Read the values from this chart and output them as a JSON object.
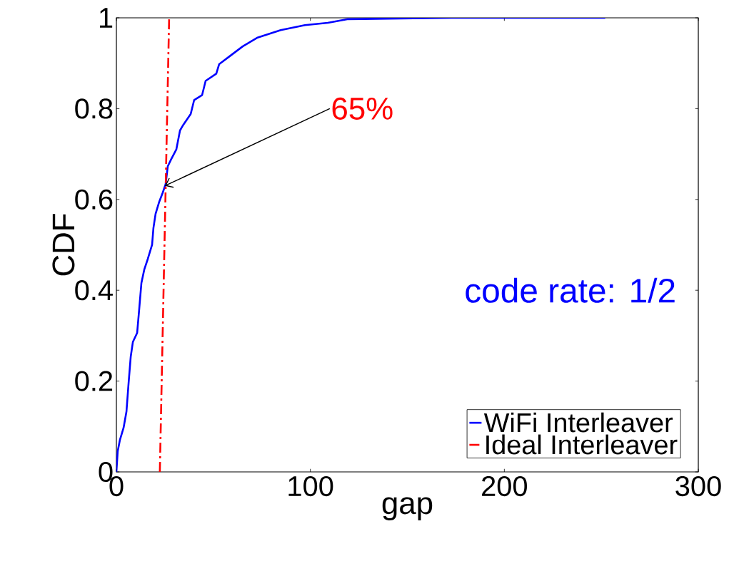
{
  "chart_data": {
    "type": "line",
    "xlabel": "gap",
    "ylabel": "CDF",
    "xlim": [
      0,
      300
    ],
    "ylim": [
      0,
      1
    ],
    "xticks": [
      0,
      100,
      200,
      300
    ],
    "yticks": [
      0,
      0.2,
      0.4,
      0.6,
      0.8,
      1
    ],
    "grid": false,
    "legend": "bottom right",
    "annotations": [
      {
        "text": "65%",
        "x": 25,
        "y": 0.63
      },
      "code rate: 1/2"
    ],
    "series": [
      {
        "name": "WiFi Interleaver",
        "color": "#0000ff",
        "line_style": "solid",
        "x": [
          0,
          0.7,
          1.8,
          3.7,
          5.2,
          6.3,
          7.4,
          8.5,
          10.7,
          11.8,
          12.9,
          14.4,
          16.2,
          18.4,
          19.1,
          20.2,
          22.1,
          23.9,
          25.4,
          26.5,
          28.3,
          30.9,
          32.8,
          34.6,
          38.3,
          40.1,
          44.2,
          46,
          51.5,
          53,
          58.9,
          65.1,
          72.5,
          84.7,
          97.2,
          109,
          119,
          173,
          252
        ],
        "values": [
          0,
          0.046,
          0.07,
          0.097,
          0.133,
          0.196,
          0.254,
          0.286,
          0.306,
          0.36,
          0.416,
          0.446,
          0.469,
          0.5,
          0.537,
          0.568,
          0.595,
          0.615,
          0.634,
          0.673,
          0.689,
          0.71,
          0.752,
          0.765,
          0.788,
          0.819,
          0.83,
          0.861,
          0.877,
          0.898,
          0.917,
          0.937,
          0.956,
          0.973,
          0.984,
          0.989,
          0.997,
          1,
          1
        ]
      },
      {
        "name": "Ideal Interleaver",
        "color": "#ff0000",
        "line_style": "dashed",
        "x": [
          22.4,
          27.2
        ],
        "values": [
          0,
          1
        ]
      }
    ]
  }
}
